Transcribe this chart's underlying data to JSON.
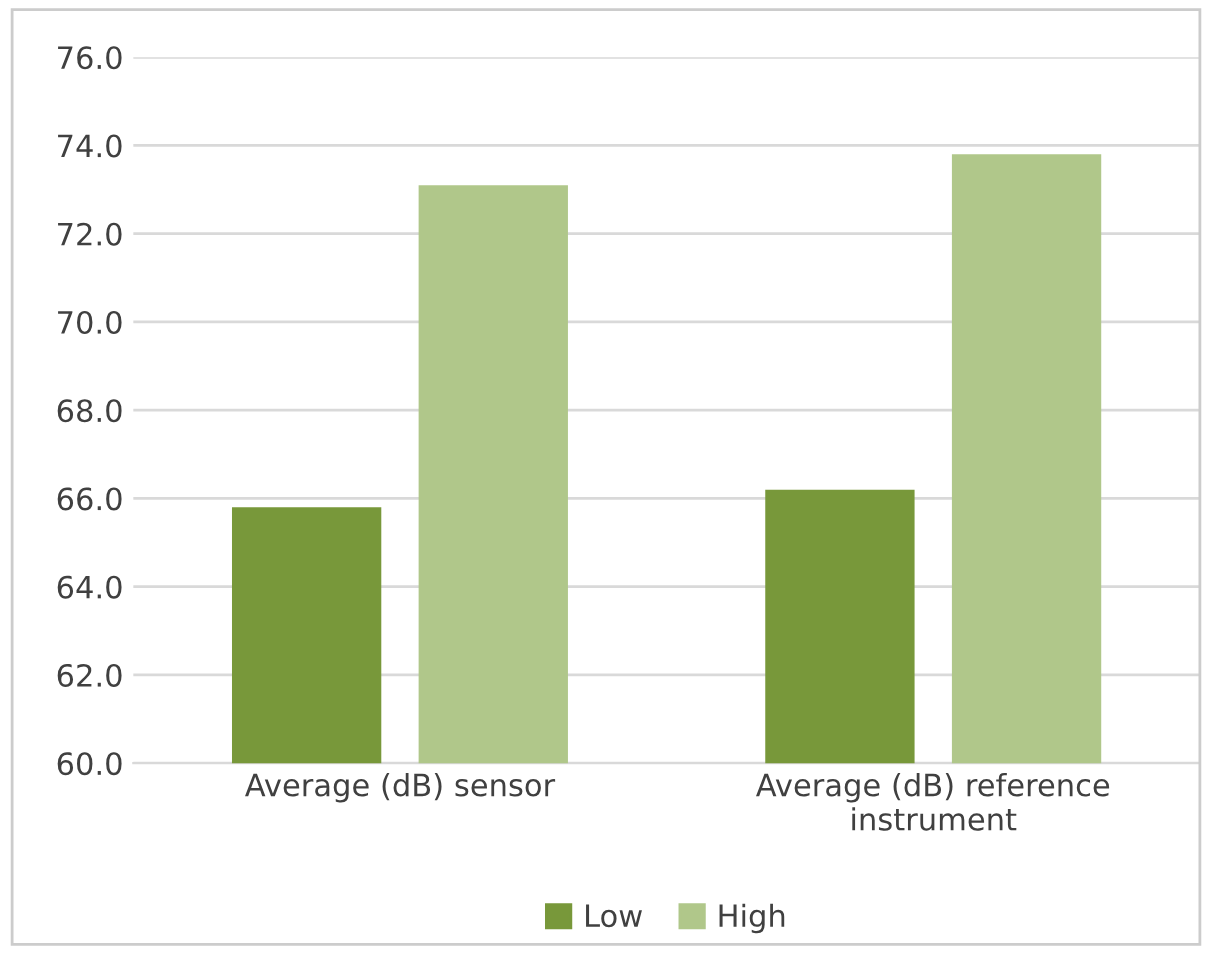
{
  "chart_data": {
    "type": "bar",
    "categories": [
      "Average (dB) sensor",
      "Average (dB) reference\ninstrument"
    ],
    "series": [
      {
        "name": "Low",
        "color": "#78983a",
        "values": [
          65.8,
          66.2
        ]
      },
      {
        "name": "High",
        "color": "#b0c78a",
        "values": [
          73.1,
          73.8
        ]
      }
    ],
    "ylim": [
      60,
      76
    ],
    "yticks": [
      {
        "value": 60,
        "label": "60.0"
      },
      {
        "value": 62,
        "label": "62.0"
      },
      {
        "value": 64,
        "label": "64.0"
      },
      {
        "value": 66,
        "label": "66.0"
      },
      {
        "value": 68,
        "label": "68.0"
      },
      {
        "value": 70,
        "label": "70.0"
      },
      {
        "value": 72,
        "label": "72.0"
      },
      {
        "value": 74,
        "label": "74.0"
      },
      {
        "value": 76,
        "label": "76.0"
      }
    ],
    "grid": "y",
    "legend": "bottom"
  }
}
